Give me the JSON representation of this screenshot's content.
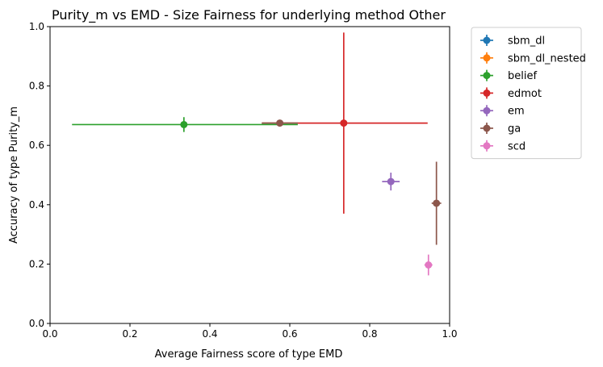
{
  "chart_data": {
    "type": "scatter",
    "title": "Purity_m vs EMD - Size Fairness for underlying method Other",
    "xlabel": "Average Fairness score of type EMD",
    "ylabel": "Accuracy of type Purity_m",
    "xlim": [
      0.0,
      1.0
    ],
    "ylim": [
      0.0,
      1.0
    ],
    "xticks": [
      "0.0",
      "0.2",
      "0.4",
      "0.6",
      "0.8",
      "1.0"
    ],
    "yticks": [
      "0.0",
      "0.2",
      "0.4",
      "0.6",
      "0.8",
      "1.0"
    ],
    "grid": false,
    "legend_position": "outside-right",
    "series": [
      {
        "name": "sbm_dl",
        "color": "#1f77b4",
        "points": []
      },
      {
        "name": "sbm_dl_nested",
        "color": "#ff7f0e",
        "points": []
      },
      {
        "name": "belief",
        "color": "#2ca02c",
        "points": [
          {
            "x": 0.335,
            "y": 0.67,
            "xerr": [
              0.28,
              0.285
            ],
            "yerr": [
              0.025,
              0.025
            ]
          }
        ]
      },
      {
        "name": "edmot",
        "color": "#d62728",
        "points": [
          {
            "x": 0.735,
            "y": 0.675,
            "xerr": [
              0.205,
              0.21
            ],
            "yerr": [
              0.305,
              0.305
            ]
          }
        ]
      },
      {
        "name": "em",
        "color": "#9467bd",
        "points": [
          {
            "x": 0.853,
            "y": 0.478,
            "xerr": [
              0.022,
              0.022
            ],
            "yerr": [
              0.03,
              0.03
            ]
          }
        ]
      },
      {
        "name": "ga",
        "color": "#8c564b",
        "points": [
          {
            "x": 0.967,
            "y": 0.405,
            "xerr": [
              0.012,
              0.012
            ],
            "yerr": [
              0.14,
              0.14
            ]
          },
          {
            "x": 0.575,
            "y": 0.675,
            "xerr": [
              0.045,
              0.045
            ],
            "yerr": [
              0.0,
              0.0
            ]
          }
        ]
      },
      {
        "name": "scd",
        "color": "#e377c2",
        "points": [
          {
            "x": 0.947,
            "y": 0.197,
            "xerr": [
              0.01,
              0.01
            ],
            "yerr": [
              0.035,
              0.035
            ]
          }
        ]
      }
    ]
  }
}
